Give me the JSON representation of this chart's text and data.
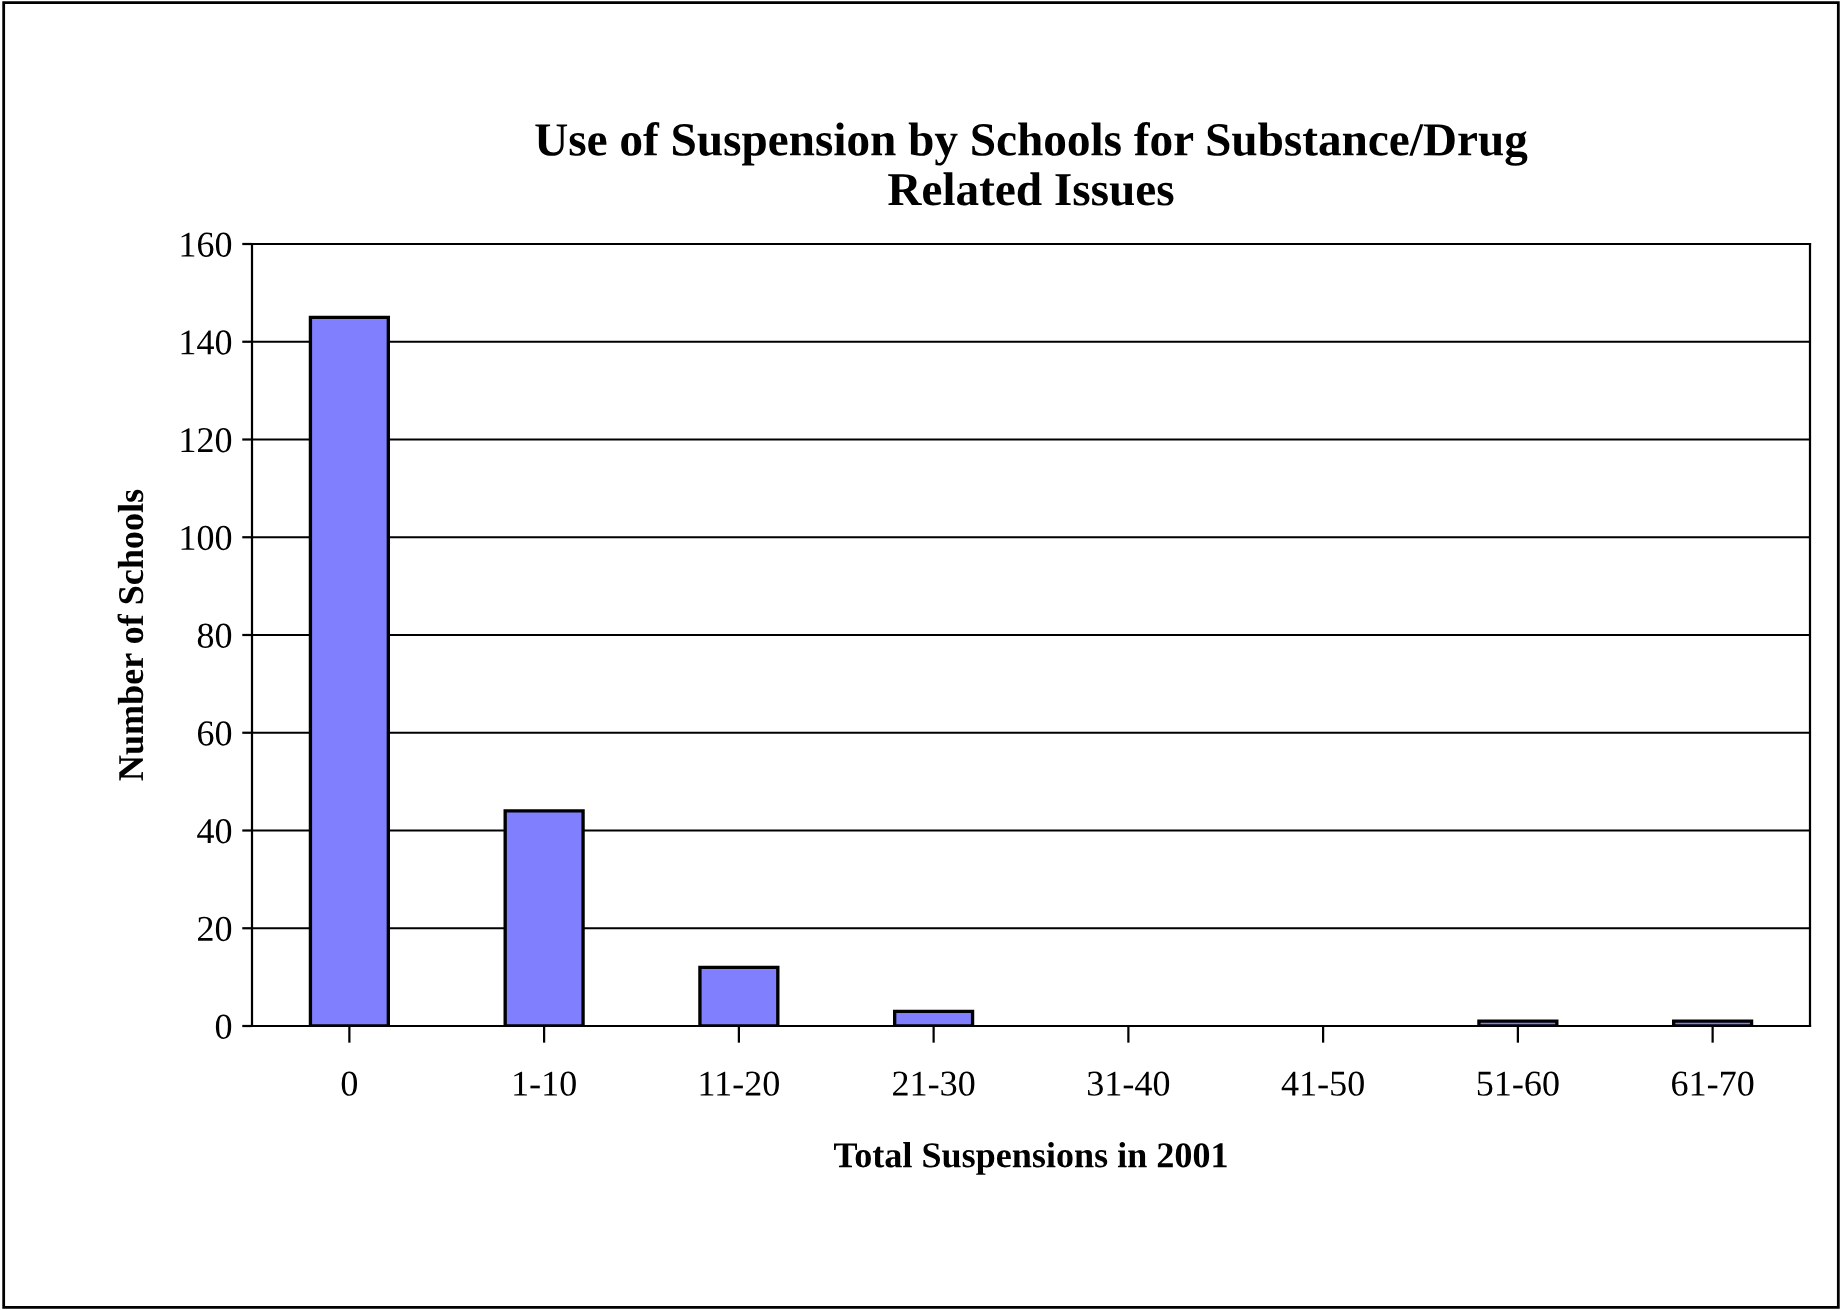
{
  "chart_data": {
    "type": "bar",
    "title": "Use of Suspension by Schools for Substance/Drug\nRelated Issues",
    "xlabel": "Total Suspensions in 2001",
    "ylabel": "Number of Schools",
    "categories": [
      "0",
      "1-10",
      "11-20",
      "21-30",
      "31-40",
      "41-50",
      "51-60",
      "61-70"
    ],
    "values": [
      145,
      44,
      12,
      3,
      0,
      0,
      1,
      1
    ],
    "color": "#8080ff",
    "ylim": [
      0,
      160
    ],
    "yticks": [
      0,
      20,
      40,
      60,
      80,
      100,
      120,
      140,
      160
    ],
    "grid": "y",
    "legend": false
  }
}
